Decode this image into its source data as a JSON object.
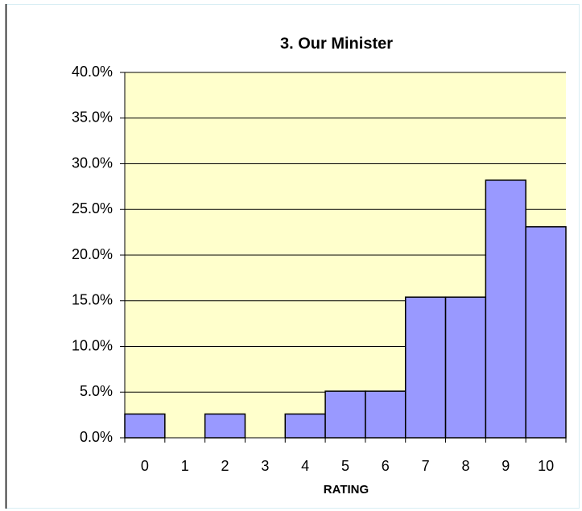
{
  "chart_data": {
    "type": "bar",
    "title": "3. Our Minister",
    "x_label": "RATING",
    "categories": [
      "0",
      "1",
      "2",
      "3",
      "4",
      "5",
      "6",
      "7",
      "8",
      "9",
      "10"
    ],
    "values": [
      2.6,
      0,
      2.6,
      0,
      2.6,
      5.1,
      5.1,
      15.4,
      15.4,
      28.2,
      23.1
    ],
    "color": "#9999ff",
    "ylim": [
      0,
      40
    ],
    "yticks": [
      {
        "value": 0,
        "label": "0.0%"
      },
      {
        "value": 5,
        "label": "5.0%"
      },
      {
        "value": 10,
        "label": "10.0%"
      },
      {
        "value": 15,
        "label": "15.0%"
      },
      {
        "value": 20,
        "label": "20.0%"
      },
      {
        "value": 25,
        "label": "25.0%"
      },
      {
        "value": 30,
        "label": "30.0%"
      },
      {
        "value": 35,
        "label": "35.0%"
      },
      {
        "value": 40,
        "label": "40.0%"
      }
    ],
    "grid": true
  }
}
